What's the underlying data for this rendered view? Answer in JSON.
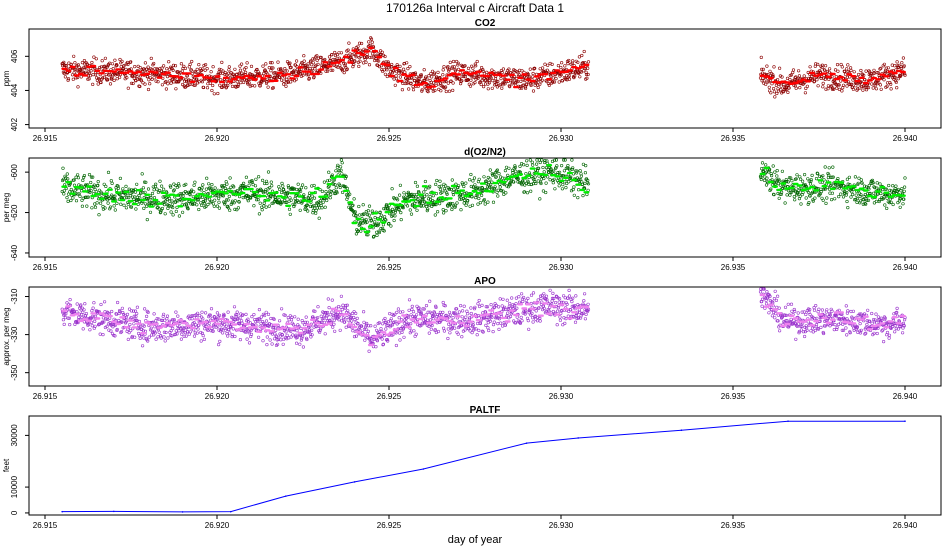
{
  "figure": {
    "title": "170126a   Interval c Aircraft Data 1",
    "xlabel": "day of year"
  },
  "colors": {
    "co2_open": "#8b0000",
    "co2_filled": "#ff0000",
    "o2_open": "#006400",
    "o2_filled": "#00ee00",
    "apo_open": "#9932cc",
    "apo_filled": "#ee82ee",
    "paltf_line": "#0000ff"
  },
  "chart_data": [
    {
      "type": "scatter",
      "title": "CO2",
      "ylabel": "ppm",
      "xlim": [
        26.915,
        26.94
      ],
      "ylim": [
        401.8,
        407.6
      ],
      "x_ticks": [
        "26.915",
        "26.920",
        "26.925",
        "26.930",
        "26.935",
        "26.940"
      ],
      "y_ticks": [
        "402",
        "404",
        "406"
      ],
      "segments": [
        {
          "x_range": [
            26.9155,
            26.9308
          ],
          "anchors": [
            [
              26.9155,
              405.2
            ],
            [
              26.918,
              405.0
            ],
            [
              26.92,
              404.7
            ],
            [
              26.922,
              404.9
            ],
            [
              26.9235,
              405.6
            ],
            [
              26.9245,
              406.4
            ],
            [
              26.925,
              405.2
            ],
            [
              26.926,
              404.4
            ],
            [
              26.927,
              405.0
            ],
            [
              26.929,
              404.6
            ],
            [
              26.9308,
              405.4
            ]
          ],
          "spread": 0.8
        },
        {
          "x_range": [
            26.9358,
            26.94
          ],
          "anchors": [
            [
              26.9358,
              404.9
            ],
            [
              26.9365,
              404.3
            ],
            [
              26.9375,
              404.9
            ],
            [
              26.939,
              404.6
            ],
            [
              26.94,
              405.2
            ]
          ],
          "spread": 0.8
        }
      ]
    },
    {
      "type": "scatter",
      "title": "d(O2/N2)",
      "ylabel": "per meg",
      "xlim": [
        26.915,
        26.94
      ],
      "ylim": [
        -642,
        -593
      ],
      "x_ticks": [
        "26.915",
        "26.920",
        "26.925",
        "26.930",
        "26.935",
        "26.940"
      ],
      "y_ticks": [
        "-640",
        "-620",
        "-600"
      ],
      "segments": [
        {
          "x_range": [
            26.9155,
            26.9308
          ],
          "anchors": [
            [
              26.9155,
              -608
            ],
            [
              26.917,
              -612
            ],
            [
              26.919,
              -613
            ],
            [
              26.921,
              -610
            ],
            [
              26.922,
              -612
            ],
            [
              26.923,
              -614
            ],
            [
              26.9236,
              -600
            ],
            [
              26.924,
              -623
            ],
            [
              26.9245,
              -626
            ],
            [
              26.9255,
              -614
            ],
            [
              26.9275,
              -610
            ],
            [
              26.9285,
              -603
            ],
            [
              26.9298,
              -600
            ],
            [
              26.9308,
              -606
            ]
          ],
          "spread": 9
        },
        {
          "x_range": [
            26.9358,
            26.94
          ],
          "anchors": [
            [
              26.9358,
              -600
            ],
            [
              26.9365,
              -608
            ],
            [
              26.938,
              -607
            ],
            [
              26.9395,
              -611
            ],
            [
              26.94,
              -610
            ]
          ],
          "spread": 8
        }
      ]
    },
    {
      "type": "scatter",
      "title": "APO",
      "ylabel": "approx. per meg",
      "xlim": [
        26.915,
        26.94
      ],
      "ylim": [
        -357,
        -305
      ],
      "x_ticks": [
        "26.915",
        "26.920",
        "26.925",
        "26.930",
        "26.935",
        "26.940"
      ],
      "y_ticks": [
        "-350",
        "-330",
        "-310"
      ],
      "segments": [
        {
          "x_range": [
            26.9155,
            26.9308
          ],
          "anchors": [
            [
              26.9155,
              -318
            ],
            [
              26.918,
              -326
            ],
            [
              26.92,
              -324
            ],
            [
              26.9225,
              -327
            ],
            [
              26.9236,
              -318
            ],
            [
              26.9245,
              -333
            ],
            [
              26.9255,
              -322
            ],
            [
              26.9275,
              -322
            ],
            [
              26.9295,
              -315
            ],
            [
              26.9308,
              -317
            ]
          ],
          "spread": 9
        },
        {
          "x_range": [
            26.9358,
            26.94
          ],
          "anchors": [
            [
              26.9358,
              -308
            ],
            [
              26.9365,
              -323
            ],
            [
              26.938,
              -322
            ],
            [
              26.9395,
              -325
            ],
            [
              26.94,
              -323
            ]
          ],
          "spread": 8
        }
      ]
    },
    {
      "type": "line",
      "title": "PALTF",
      "ylabel": "feet",
      "xlabel": "day of year",
      "xlim": [
        26.915,
        26.94
      ],
      "ylim": [
        -800,
        37500
      ],
      "x_ticks": [
        "26.915",
        "26.920",
        "26.925",
        "26.930",
        "26.935",
        "26.940"
      ],
      "y_ticks": [
        "0",
        "10000",
        "30000"
      ],
      "x": [
        26.9155,
        26.917,
        26.919,
        26.9204,
        26.922,
        26.924,
        26.926,
        26.929,
        26.9305,
        26.9335,
        26.9366,
        26.94
      ],
      "y": [
        500,
        600,
        400,
        500,
        6500,
        12000,
        17000,
        27000,
        29000,
        32000,
        35500,
        35500
      ]
    }
  ]
}
